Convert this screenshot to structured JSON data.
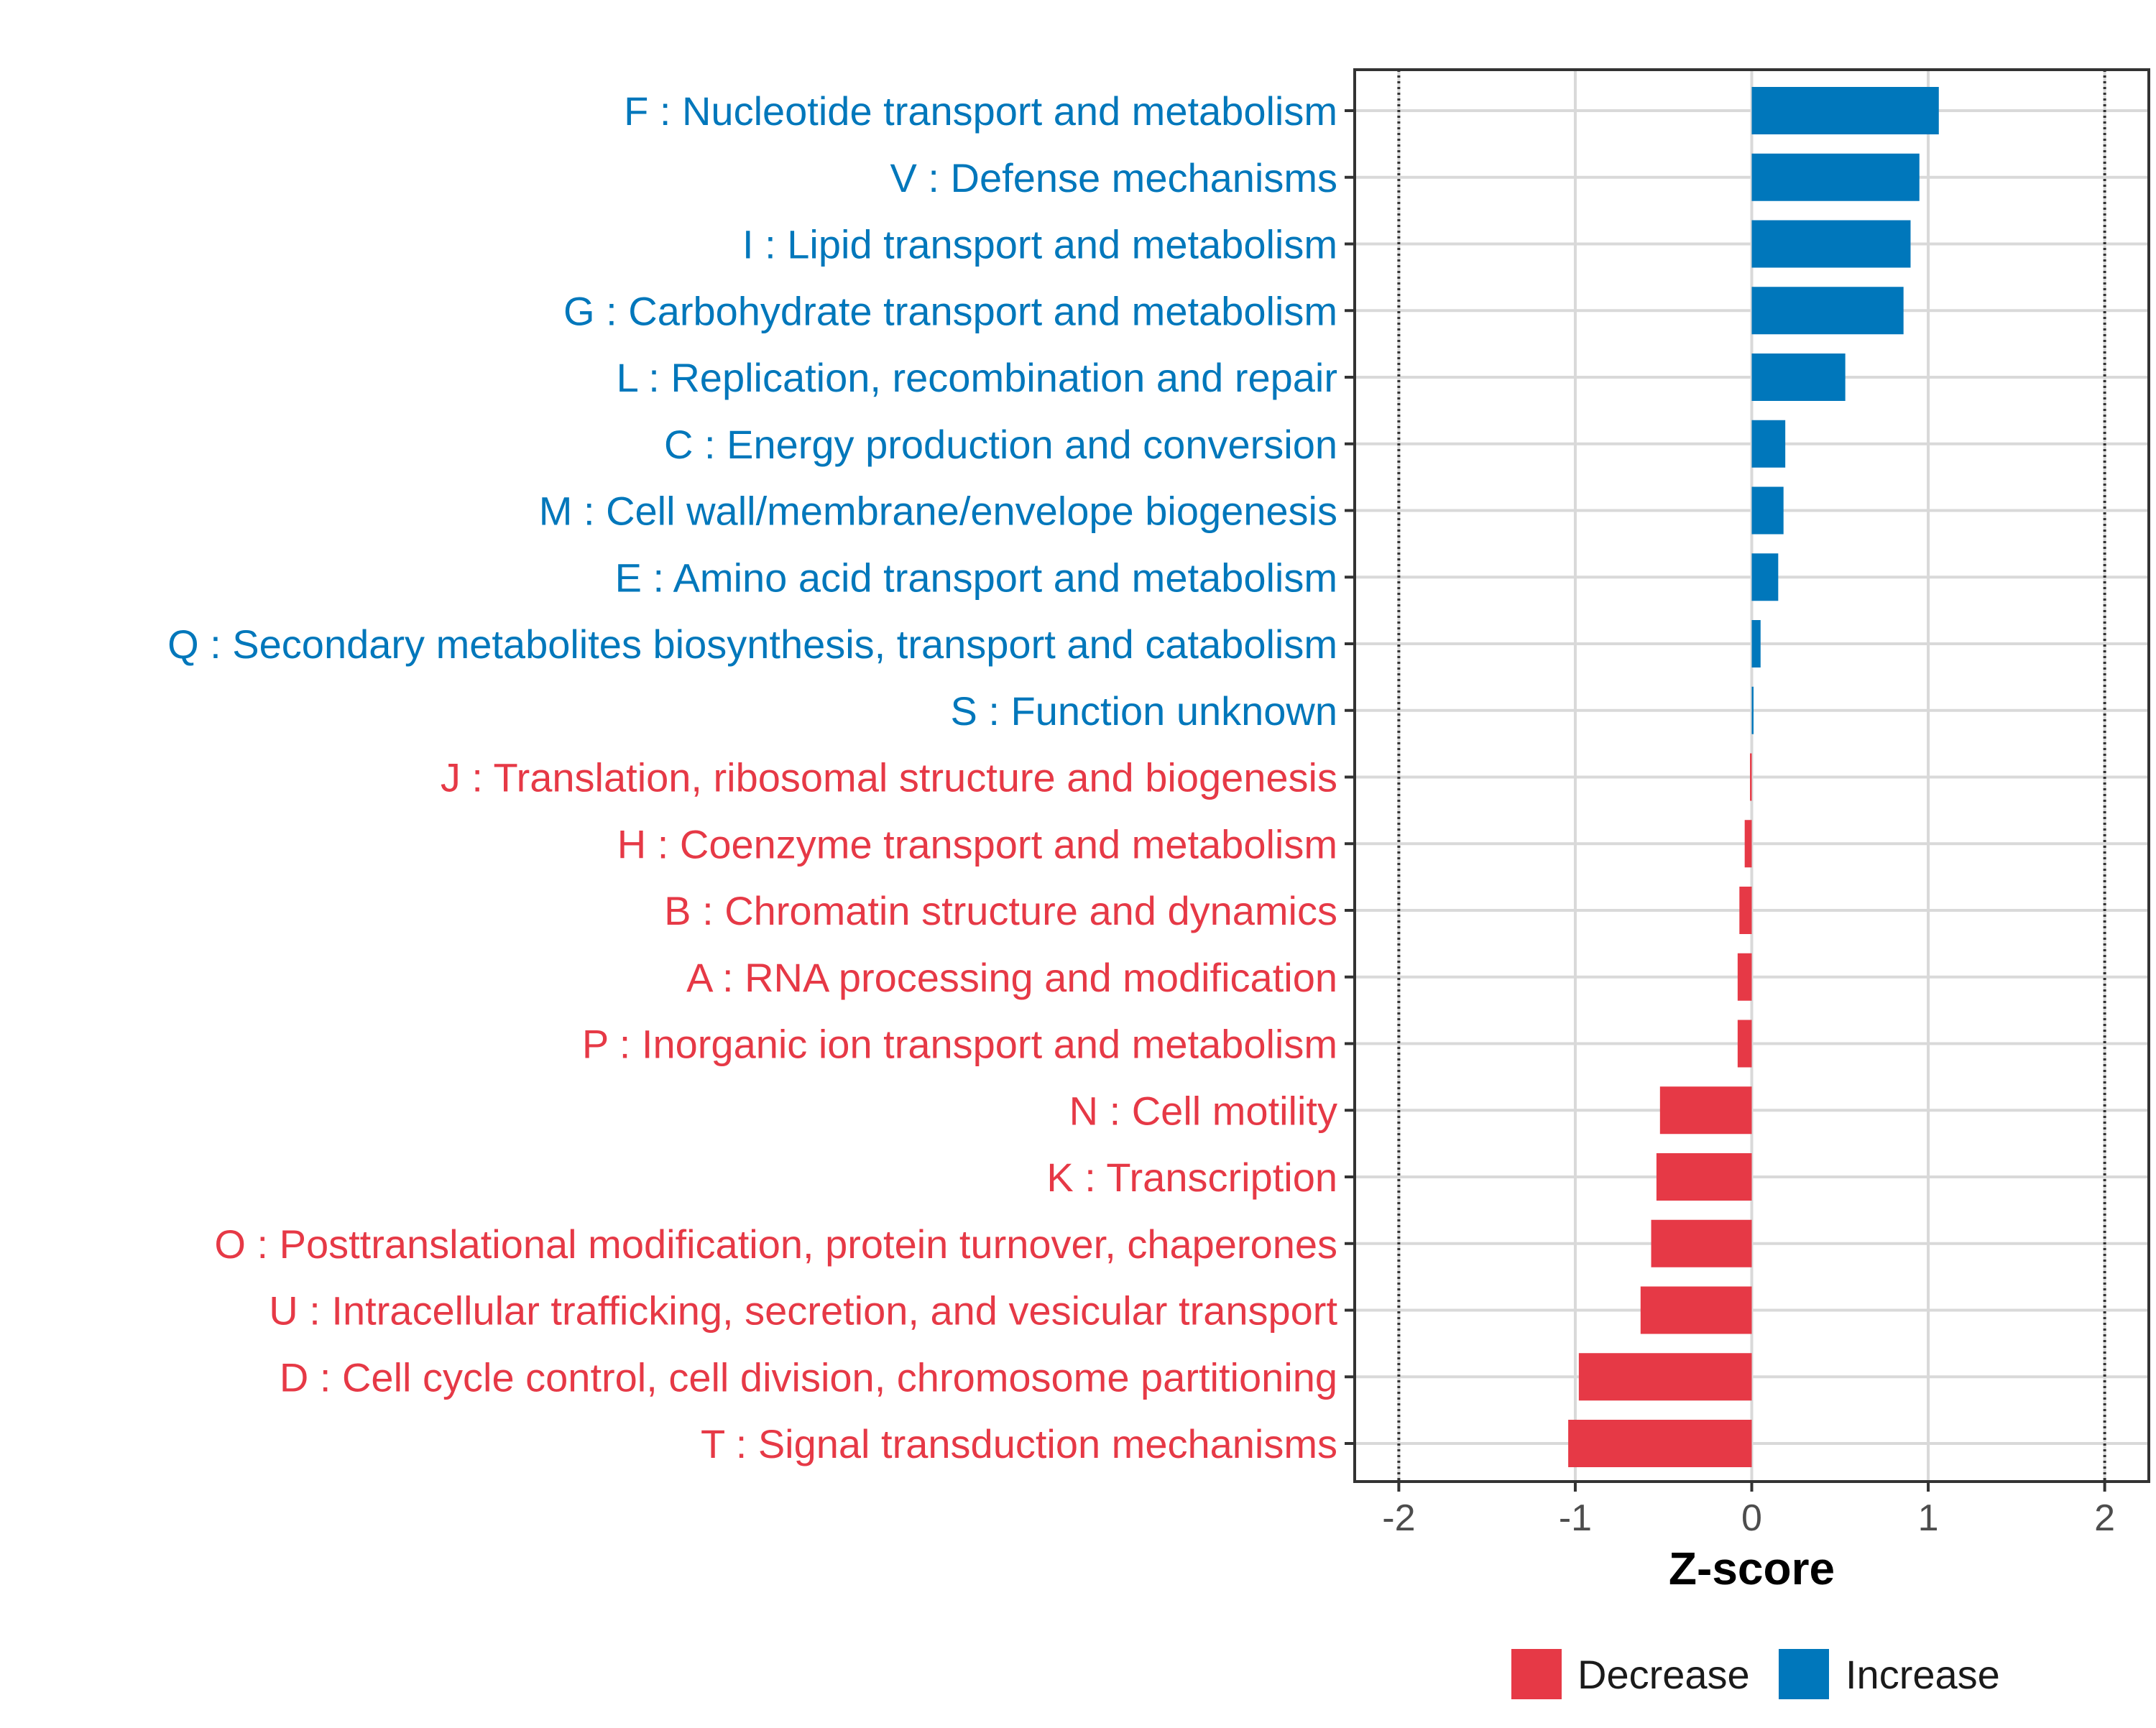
{
  "chart_data": {
    "type": "bar",
    "orientation": "horizontal",
    "xlabel": "Z-score",
    "xlim": [
      -2.25,
      2.25
    ],
    "xticks": [
      -2,
      -1,
      0,
      1,
      2
    ],
    "xtick_labels": [
      "-2",
      "-1",
      "0",
      "1",
      "2"
    ],
    "reference_lines": [
      -2,
      2
    ],
    "grid": true,
    "legend_position": "bottom",
    "colors": {
      "Decrease": "#E63946",
      "Increase": "#0077BB"
    },
    "series_names": [
      "Decrease",
      "Increase"
    ],
    "categories": [
      "F : Nucleotide transport and metabolism",
      "V : Defense mechanisms",
      "I : Lipid transport and metabolism",
      "G : Carbohydrate transport and metabolism",
      "L : Replication, recombination and repair",
      "C : Energy production and conversion",
      "M : Cell wall/membrane/envelope biogenesis",
      "E : Amino acid transport and metabolism",
      "Q : Secondary metabolites biosynthesis, transport and catabolism",
      "S : Function unknown",
      "J : Translation, ribosomal structure and biogenesis",
      "H : Coenzyme transport and metabolism",
      "B : Chromatin structure and dynamics",
      "A : RNA processing and modification",
      "P : Inorganic ion transport and metabolism",
      "N : Cell motility",
      "K : Transcription",
      "O : Posttranslational modification, protein turnover, chaperones",
      "U : Intracellular trafficking, secretion, and vesicular transport",
      "D : Cell cycle control, cell division, chromosome partitioning",
      "T : Signal transduction mechanisms"
    ],
    "values": [
      1.06,
      0.95,
      0.9,
      0.86,
      0.53,
      0.19,
      0.18,
      0.15,
      0.05,
      0.01,
      -0.01,
      -0.04,
      -0.07,
      -0.08,
      -0.08,
      -0.52,
      -0.54,
      -0.57,
      -0.63,
      -0.98,
      -1.04
    ],
    "groups": [
      "Increase",
      "Increase",
      "Increase",
      "Increase",
      "Increase",
      "Increase",
      "Increase",
      "Increase",
      "Increase",
      "Increase",
      "Decrease",
      "Decrease",
      "Decrease",
      "Decrease",
      "Decrease",
      "Decrease",
      "Decrease",
      "Decrease",
      "Decrease",
      "Decrease",
      "Decrease"
    ]
  }
}
